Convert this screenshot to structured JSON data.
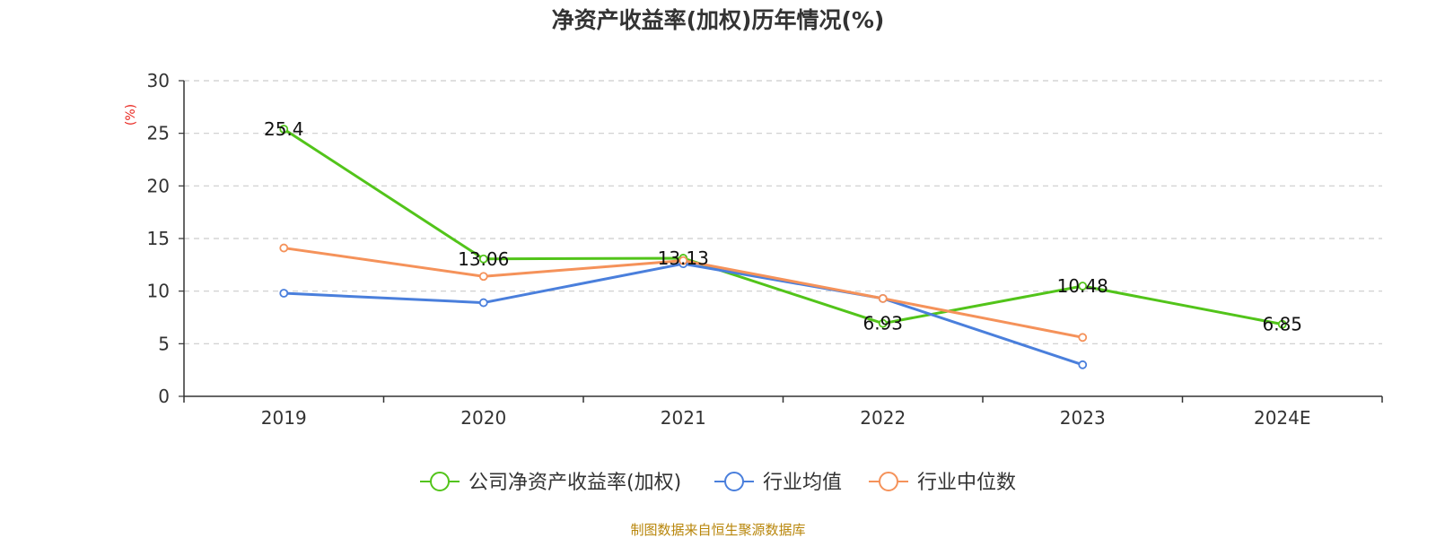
{
  "chart_data": {
    "type": "line",
    "title": "净资产收益率(加权)历年情况(%)",
    "ylabel": "(%)",
    "xlabel": "",
    "categories": [
      "2019",
      "2020",
      "2021",
      "2022",
      "2023",
      "2024E"
    ],
    "ylim": [
      0,
      30
    ],
    "yticks": [
      0,
      5,
      10,
      15,
      20,
      25,
      30
    ],
    "grid": true,
    "legend_position": "bottom",
    "series": [
      {
        "name": "公司净资产收益率(加权)",
        "color": "#52c41a",
        "values": [
          25.4,
          13.06,
          13.13,
          6.93,
          10.48,
          6.85
        ],
        "labels": [
          "25.4",
          "13.06",
          "13.13",
          "6.93",
          "10.48",
          "6.85"
        ]
      },
      {
        "name": "行业均值",
        "color": "#4a7fdc",
        "values": [
          9.8,
          8.9,
          12.6,
          9.3,
          3.0,
          null
        ]
      },
      {
        "name": "行业中位数",
        "color": "#f5925a",
        "values": [
          14.1,
          11.4,
          12.9,
          9.3,
          5.6,
          null
        ]
      }
    ],
    "source": "制图数据来自恒生聚源数据库"
  }
}
